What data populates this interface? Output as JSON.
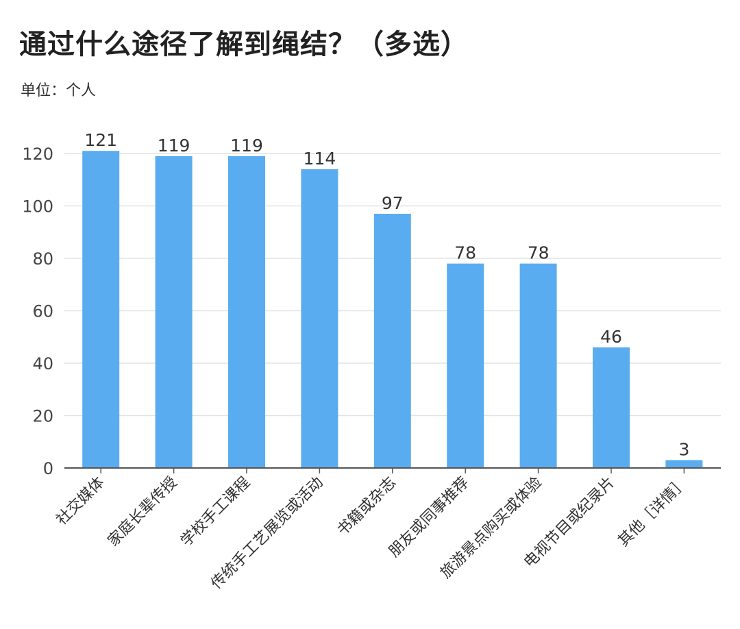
{
  "title": "通过什么途径了解到绳结？（多选）",
  "unit_label": "单位：个人",
  "colors": {
    "bar": "#5aacf0",
    "grid": "#e3e3e3",
    "axis": "#555555"
  },
  "chart_data": {
    "type": "bar",
    "title": "通过什么途径了解到绳结？（多选）",
    "xlabel": "",
    "ylabel": "",
    "ylim": [
      0,
      125
    ],
    "yticks": [
      0,
      20,
      40,
      60,
      80,
      100,
      120
    ],
    "grid": true,
    "legend": "none",
    "categories": [
      "社交媒体",
      "家庭长辈传授",
      "学校手工课程",
      "传统手工艺展览或活动",
      "书籍或杂志",
      "朋友或同事推荐",
      "旅游景点购买或体验",
      "电视节目或纪录片",
      "其他［详情］"
    ],
    "values": [
      121,
      119,
      119,
      114,
      97,
      78,
      78,
      46,
      3
    ]
  }
}
